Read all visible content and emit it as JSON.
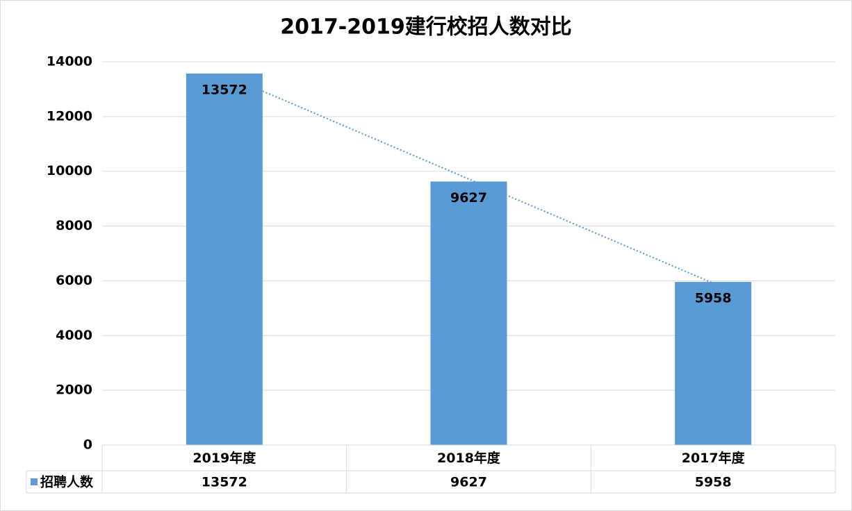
{
  "chart_data": {
    "type": "bar",
    "title": "2017-2019建行校招人数对比",
    "categories": [
      "2019年度",
      "2018年度",
      "2017年度"
    ],
    "series": [
      {
        "name": "招聘人数",
        "color": "#5b9bd5",
        "values": [
          13572,
          9627,
          5958
        ]
      }
    ],
    "ylim": [
      0,
      14000
    ],
    "yticks": [
      0,
      2000,
      4000,
      6000,
      8000,
      10000,
      12000,
      14000
    ],
    "grid": true,
    "trendline": "linear",
    "data_table": true
  }
}
